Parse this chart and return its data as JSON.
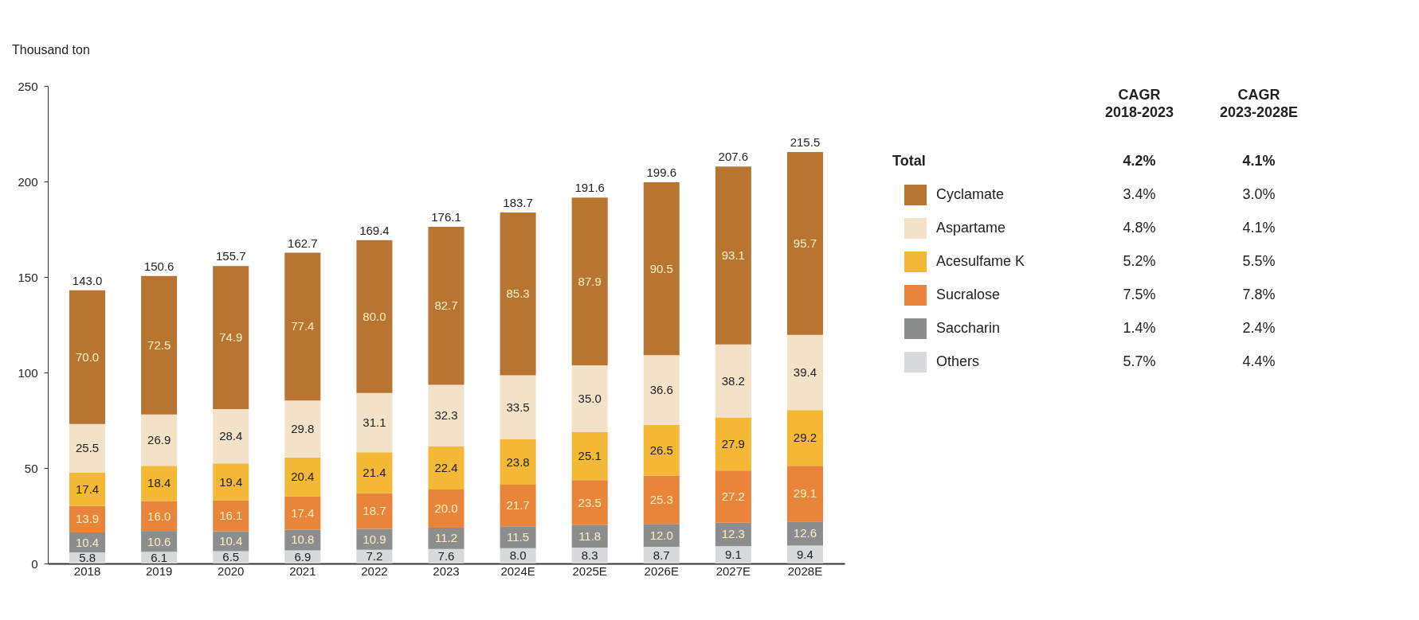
{
  "chart_data": {
    "type": "bar",
    "stacked": true,
    "ylabel": "Thousand ton",
    "categories": [
      "2018",
      "2019",
      "2020",
      "2021",
      "2022",
      "2023",
      "2024E",
      "2025E",
      "2026E",
      "2027E",
      "2028E"
    ],
    "series": [
      {
        "name": "Others",
        "color": "#d7d9db",
        "values": [
          5.8,
          6.1,
          6.5,
          6.9,
          7.2,
          7.6,
          8.0,
          8.3,
          8.7,
          9.1,
          9.4
        ],
        "value_labels": [
          "5.8",
          "6.1",
          "6.5",
          "6.9",
          "7.2",
          "7.6",
          "8.0",
          "8.3",
          "8.7",
          "9.1",
          "9.4"
        ]
      },
      {
        "name": "Saccharin",
        "color": "#8b8e8d",
        "values": [
          10.4,
          10.6,
          10.4,
          10.8,
          10.9,
          11.2,
          11.5,
          11.8,
          12.0,
          12.3,
          12.6
        ],
        "value_labels": [
          "10.4",
          "10.6",
          "10.4",
          "10.8",
          "10.9",
          "11.2",
          "11.5",
          "11.8",
          "12.0",
          "12.3",
          "12.6"
        ]
      },
      {
        "name": "Sucralose",
        "color": "#e8853a",
        "values": [
          13.9,
          16.0,
          16.1,
          17.4,
          18.7,
          20.0,
          21.7,
          23.5,
          25.3,
          27.2,
          29.1
        ],
        "value_labels": [
          "13.9",
          "16.0",
          "16.1",
          "17.4",
          "18.7",
          "20.0",
          "21.7",
          "23.5",
          "25.3",
          "27.2",
          "29.1"
        ]
      },
      {
        "name": "Acesulfame K",
        "color": "#f2b836",
        "values": [
          17.4,
          18.4,
          19.4,
          20.4,
          21.4,
          22.4,
          23.8,
          25.1,
          26.5,
          27.9,
          29.2
        ],
        "value_labels": [
          "17.4",
          "18.4",
          "19.4",
          "20.4",
          "21.4",
          "22.4",
          "23.8",
          "25.1",
          "26.5",
          "27.9",
          "29.2"
        ]
      },
      {
        "name": "Aspartame",
        "color": "#f3e1c8",
        "values": [
          25.5,
          26.9,
          28.4,
          29.8,
          31.1,
          32.3,
          33.5,
          35.0,
          36.6,
          38.2,
          39.4
        ],
        "value_labels": [
          "25.5",
          "26.9",
          "28.4",
          "29.8",
          "31.1",
          "32.3",
          "33.5",
          "35.0",
          "36.6",
          "38.2",
          "39.4"
        ]
      },
      {
        "name": "Cyclamate",
        "color": "#b87532",
        "values": [
          70.0,
          72.5,
          74.9,
          77.4,
          80.0,
          82.7,
          85.3,
          87.9,
          90.5,
          93.1,
          95.7
        ],
        "value_labels": [
          "70.0",
          "72.5",
          "74.9",
          "77.4",
          "80.0",
          "82.7",
          "85.3",
          "87.9",
          "90.5",
          "93.1",
          "95.7"
        ]
      }
    ],
    "totals": [
      "143.0",
      "150.6",
      "155.7",
      "162.7",
      "169.4",
      "176.1",
      "183.7",
      "191.6",
      "199.6",
      "207.6",
      "215.5"
    ],
    "ylim": [
      0,
      250
    ],
    "yticks": [
      0,
      50,
      100,
      150,
      200,
      250
    ],
    "legend": "right",
    "annotations": [
      "CAGR\n2018-2023",
      "CAGR\n2023-2028E",
      "Total",
      "4.2%",
      "4.1%",
      "3.4%",
      "3.0%",
      "4.8%",
      "4.1%",
      "5.2%",
      "5.5%",
      "7.5%",
      "7.8%",
      "1.4%",
      "2.4%",
      "5.7%",
      "4.4%"
    ]
  }
}
